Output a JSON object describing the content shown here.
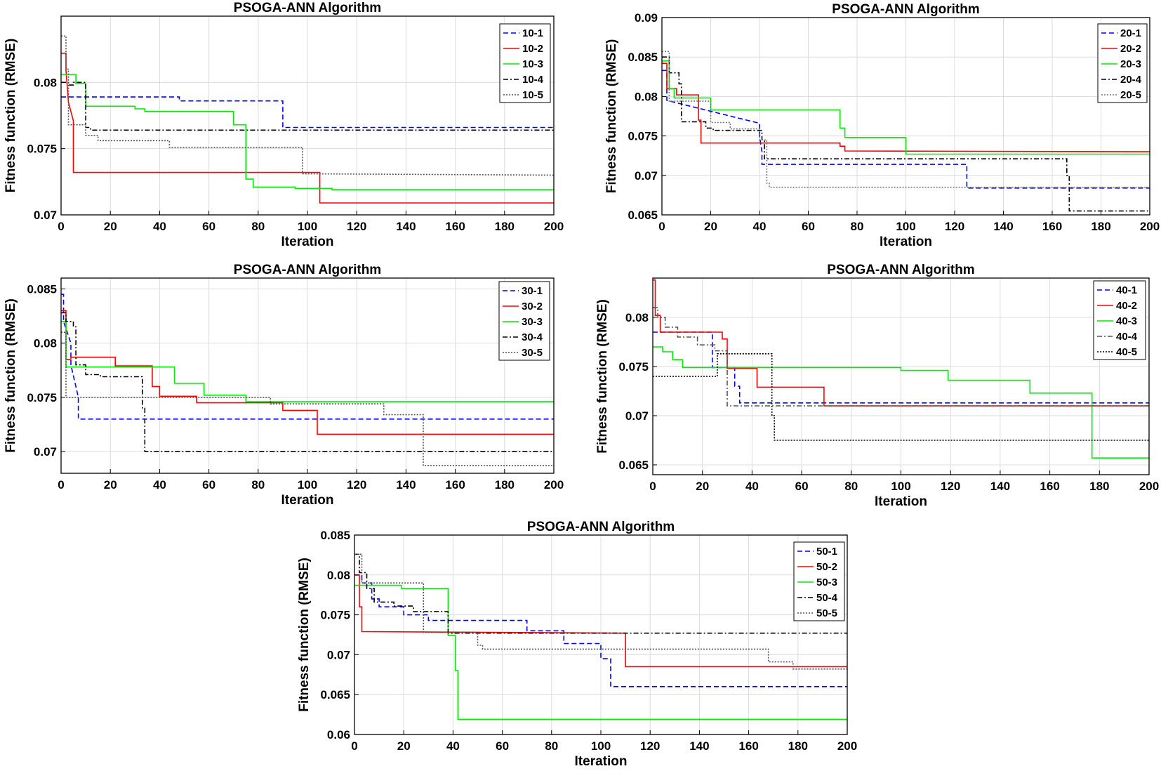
{
  "chart_data": [
    {
      "type": "line",
      "title": "PSOGA-ANN Algorithm",
      "xlabel": "Iteration",
      "ylabel": "Fitness function (RMSE)",
      "xlim": [
        0,
        200
      ],
      "ylim": [
        0.07,
        0.085
      ],
      "xticks": [
        0,
        20,
        40,
        60,
        80,
        100,
        120,
        140,
        160,
        180,
        200
      ],
      "yticks": [
        0.07,
        0.075,
        0.08
      ],
      "ytick_labels": [
        "0.07",
        "0.075",
        "0.08"
      ],
      "grid": true,
      "legend_position": "top-right",
      "series": [
        {
          "name": "10-1",
          "color": "#0000ff",
          "dash": "dashed",
          "x": [
            0,
            48,
            48,
            90,
            90,
            200
          ],
          "y": [
            0.0789,
            0.0789,
            0.0786,
            0.0786,
            0.0766,
            0.0766
          ]
        },
        {
          "name": "10-2",
          "color": "#ff0000",
          "dash": "solid",
          "x": [
            0,
            2,
            2,
            3,
            5,
            5,
            105,
            105,
            200
          ],
          "y": [
            0.0822,
            0.0822,
            0.0809,
            0.0785,
            0.0771,
            0.0732,
            0.0732,
            0.0709,
            0.0709
          ]
        },
        {
          "name": "10-3",
          "color": "#00ee00",
          "dash": "solid",
          "x": [
            0,
            6,
            6,
            10,
            10,
            30,
            30,
            34,
            34,
            70,
            70,
            75,
            75,
            78,
            78,
            95,
            95,
            110,
            110,
            200
          ],
          "y": [
            0.0806,
            0.0806,
            0.0799,
            0.0799,
            0.0782,
            0.0782,
            0.078,
            0.078,
            0.0778,
            0.0778,
            0.0768,
            0.0768,
            0.0727,
            0.0727,
            0.0721,
            0.0721,
            0.072,
            0.072,
            0.0719,
            0.0719
          ]
        },
        {
          "name": "10-4",
          "color": "#000000",
          "dash": "dashdot",
          "x": [
            0,
            3,
            3,
            5,
            5,
            10,
            10,
            12,
            12,
            200
          ],
          "y": [
            0.08,
            0.08,
            0.0798,
            0.0798,
            0.08,
            0.08,
            0.0766,
            0.0766,
            0.0764,
            0.0764
          ]
        },
        {
          "name": "10-5",
          "color": "#555555",
          "dash": "dotted",
          "x": [
            0,
            2,
            2,
            3,
            3,
            10,
            10,
            15,
            15,
            44,
            44,
            98,
            98,
            200
          ],
          "y": [
            0.0835,
            0.0835,
            0.081,
            0.081,
            0.0768,
            0.0768,
            0.076,
            0.076,
            0.0756,
            0.0756,
            0.0751,
            0.0751,
            0.0731,
            0.073
          ]
        }
      ]
    },
    {
      "type": "line",
      "title": "PSOGA-ANN Algorithm",
      "xlabel": "Iteration",
      "ylabel": "Fitness function (RMSE)",
      "xlim": [
        0,
        200
      ],
      "ylim": [
        0.065,
        0.09
      ],
      "xticks": [
        0,
        20,
        40,
        60,
        80,
        100,
        120,
        140,
        160,
        180,
        200
      ],
      "yticks": [
        0.065,
        0.07,
        0.075,
        0.08,
        0.085,
        0.09
      ],
      "ytick_labels": [
        "0.065",
        "0.07",
        "0.075",
        "0.08",
        "0.085",
        "0.09"
      ],
      "grid": true,
      "legend_position": "top-right",
      "series": [
        {
          "name": "20-1",
          "color": "#0000ff",
          "dash": "dashed",
          "x": [
            0,
            2,
            2,
            40,
            40,
            41,
            41,
            125,
            125,
            200
          ],
          "y": [
            0.0833,
            0.0833,
            0.0795,
            0.0766,
            0.075,
            0.073,
            0.0714,
            0.0714,
            0.0684,
            0.0684
          ]
        },
        {
          "name": "20-2",
          "color": "#ff0000",
          "dash": "solid",
          "x": [
            0,
            2,
            2,
            6,
            6,
            15,
            15,
            16,
            16,
            73,
            73,
            75,
            75,
            200
          ],
          "y": [
            0.0842,
            0.0842,
            0.081,
            0.081,
            0.0802,
            0.0802,
            0.077,
            0.077,
            0.0741,
            0.0741,
            0.0737,
            0.0737,
            0.0731,
            0.073
          ]
        },
        {
          "name": "20-3",
          "color": "#00ee00",
          "dash": "solid",
          "x": [
            0,
            3,
            3,
            5,
            5,
            20,
            20,
            73,
            73,
            75,
            75,
            100,
            100,
            200
          ],
          "y": [
            0.0845,
            0.0845,
            0.081,
            0.081,
            0.0798,
            0.0798,
            0.0783,
            0.0783,
            0.076,
            0.076,
            0.0748,
            0.0748,
            0.0727,
            0.0727
          ]
        },
        {
          "name": "20-4",
          "color": "#000000",
          "dash": "dashdot",
          "x": [
            0,
            3,
            3,
            7,
            7,
            8,
            8,
            18,
            18,
            21,
            21,
            41,
            41,
            42,
            42,
            166,
            166,
            167,
            167,
            200
          ],
          "y": [
            0.085,
            0.085,
            0.083,
            0.083,
            0.0816,
            0.0816,
            0.0768,
            0.0768,
            0.076,
            0.076,
            0.0757,
            0.0757,
            0.0745,
            0.0745,
            0.0721,
            0.0721,
            0.07,
            0.07,
            0.0655,
            0.0655
          ]
        },
        {
          "name": "20-5",
          "color": "#777777",
          "dash": "dotted",
          "x": [
            0,
            3,
            3,
            11,
            11,
            20,
            20,
            28,
            28,
            40,
            40,
            43,
            43,
            44,
            44,
            200
          ],
          "y": [
            0.0857,
            0.0857,
            0.0794,
            0.0794,
            0.0794,
            0.0794,
            0.0767,
            0.0767,
            0.0759,
            0.0759,
            0.0745,
            0.0745,
            0.069,
            0.069,
            0.0685,
            0.0685
          ]
        }
      ]
    },
    {
      "type": "line",
      "title": "PSOGA-ANN Algorithm",
      "xlabel": "Iteration",
      "ylabel": "Fitness function (RMSE)",
      "xlim": [
        0,
        200
      ],
      "ylim": [
        0.068,
        0.086
      ],
      "xticks": [
        0,
        20,
        40,
        60,
        80,
        100,
        120,
        140,
        160,
        180,
        200
      ],
      "yticks": [
        0.07,
        0.075,
        0.08,
        0.085
      ],
      "ytick_labels": [
        "0.07",
        "0.075",
        "0.08",
        "0.085"
      ],
      "grid": true,
      "legend_position": "top-right",
      "series": [
        {
          "name": "30-1",
          "color": "#0000ff",
          "dash": "dashed",
          "x": [
            0,
            1,
            1,
            4,
            4,
            7,
            7,
            200
          ],
          "y": [
            0.0845,
            0.0845,
            0.082,
            0.08,
            0.078,
            0.075,
            0.073,
            0.073
          ]
        },
        {
          "name": "30-2",
          "color": "#ff0000",
          "dash": "solid",
          "x": [
            0,
            2,
            2,
            4,
            4,
            22,
            22,
            37,
            37,
            40,
            40,
            55,
            55,
            90,
            90,
            104,
            104,
            200
          ],
          "y": [
            0.083,
            0.083,
            0.0785,
            0.0785,
            0.0787,
            0.0787,
            0.0779,
            0.0779,
            0.076,
            0.076,
            0.0751,
            0.0751,
            0.0745,
            0.0745,
            0.0738,
            0.0738,
            0.0716,
            0.0716
          ]
        },
        {
          "name": "30-3",
          "color": "#00ee00",
          "dash": "solid",
          "x": [
            0,
            2,
            2,
            28,
            28,
            46,
            46,
            58,
            58,
            75,
            75,
            200
          ],
          "y": [
            0.082,
            0.082,
            0.0778,
            0.0778,
            0.0778,
            0.0778,
            0.0763,
            0.0763,
            0.0752,
            0.0752,
            0.0746,
            0.0746
          ]
        },
        {
          "name": "30-4",
          "color": "#000000",
          "dash": "dashdot",
          "x": [
            0,
            2,
            2,
            5,
            5,
            6,
            6,
            10,
            10,
            16,
            16,
            33,
            33,
            34,
            34,
            200
          ],
          "y": [
            0.0828,
            0.0828,
            0.082,
            0.082,
            0.0815,
            0.0815,
            0.078,
            0.078,
            0.0771,
            0.0771,
            0.0769,
            0.0769,
            0.074,
            0.074,
            0.07,
            0.07
          ]
        },
        {
          "name": "30-5",
          "color": "#555555",
          "dash": "dotted",
          "x": [
            0,
            2,
            2,
            85,
            85,
            131,
            131,
            147,
            147,
            200
          ],
          "y": [
            0.081,
            0.081,
            0.075,
            0.075,
            0.0744,
            0.0744,
            0.0734,
            0.0734,
            0.0687,
            0.0687
          ]
        }
      ]
    },
    {
      "type": "line",
      "title": "PSOGA-ANN Algorithm",
      "xlabel": "Iteration",
      "ylabel": "Fitness function (RMSE)",
      "xlim": [
        0,
        200
      ],
      "ylim": [
        0.064,
        0.084
      ],
      "xticks": [
        0,
        20,
        40,
        60,
        80,
        100,
        120,
        140,
        160,
        180,
        200
      ],
      "yticks": [
        0.065,
        0.07,
        0.075,
        0.08
      ],
      "ytick_labels": [
        "0.065",
        "0.07",
        "0.075",
        "0.08"
      ],
      "grid": true,
      "legend_position": "top-right",
      "series": [
        {
          "name": "40-1",
          "color": "#0000ff",
          "dash": "dashed",
          "x": [
            0,
            1,
            1,
            24,
            24,
            33,
            33,
            35,
            35,
            200
          ],
          "y": [
            0.0785,
            0.0785,
            0.0785,
            0.0785,
            0.0749,
            0.0749,
            0.073,
            0.073,
            0.0713,
            0.0713
          ]
        },
        {
          "name": "40-2",
          "color": "#ff0000",
          "dash": "solid",
          "x": [
            0,
            1,
            1,
            3,
            3,
            28,
            28,
            30,
            30,
            42,
            42,
            69,
            69,
            200
          ],
          "y": [
            0.0838,
            0.0838,
            0.0802,
            0.0802,
            0.0785,
            0.0785,
            0.0778,
            0.0778,
            0.0748,
            0.0748,
            0.0729,
            0.0729,
            0.071,
            0.071
          ]
        },
        {
          "name": "40-3",
          "color": "#00ee00",
          "dash": "solid",
          "x": [
            0,
            4,
            4,
            8,
            8,
            12,
            12,
            100,
            100,
            119,
            119,
            152,
            152,
            177,
            177,
            200
          ],
          "y": [
            0.077,
            0.077,
            0.0765,
            0.0765,
            0.0757,
            0.0757,
            0.0749,
            0.0749,
            0.0746,
            0.0746,
            0.0736,
            0.0736,
            0.0723,
            0.0723,
            0.0657,
            0.0657
          ]
        },
        {
          "name": "40-4",
          "color": "#555555",
          "dash": "dashdot",
          "x": [
            0,
            2,
            2,
            5,
            5,
            10,
            10,
            18,
            18,
            25,
            25,
            30,
            30,
            200
          ],
          "y": [
            0.081,
            0.081,
            0.08,
            0.08,
            0.079,
            0.079,
            0.078,
            0.078,
            0.0772,
            0.0772,
            0.0766,
            0.0766,
            0.071,
            0.071
          ]
        },
        {
          "name": "40-5",
          "color": "#000000",
          "dash": "dotted",
          "x": [
            0,
            26,
            26,
            48,
            48,
            49,
            49,
            200
          ],
          "y": [
            0.074,
            0.074,
            0.0763,
            0.0763,
            0.07,
            0.07,
            0.0675,
            0.0675
          ]
        }
      ]
    },
    {
      "type": "line",
      "title": "PSOGA-ANN Algorithm",
      "xlabel": "Iteration",
      "ylabel": "Fitness function (RMSE)",
      "xlim": [
        0,
        200
      ],
      "ylim": [
        0.06,
        0.085
      ],
      "xticks": [
        0,
        20,
        40,
        60,
        80,
        100,
        120,
        140,
        160,
        180,
        200
      ],
      "yticks": [
        0.06,
        0.065,
        0.07,
        0.075,
        0.08,
        0.085
      ],
      "ytick_labels": [
        "0.06",
        "0.065",
        "0.07",
        "0.075",
        "0.08",
        "0.085"
      ],
      "grid": true,
      "legend_position": "top-right",
      "series": [
        {
          "name": "50-1",
          "color": "#0000ff",
          "dash": "dashed",
          "x": [
            0,
            3,
            3,
            7,
            7,
            10,
            10,
            20,
            20,
            30,
            30,
            70,
            70,
            85,
            85,
            100,
            100,
            104,
            104,
            200
          ],
          "y": [
            0.08,
            0.08,
            0.079,
            0.079,
            0.077,
            0.077,
            0.076,
            0.076,
            0.075,
            0.075,
            0.0743,
            0.0743,
            0.073,
            0.073,
            0.0714,
            0.0714,
            0.0695,
            0.0695,
            0.066,
            0.066
          ]
        },
        {
          "name": "50-2",
          "color": "#ff0000",
          "dash": "solid",
          "x": [
            0,
            2,
            2,
            3,
            3,
            110,
            110,
            200
          ],
          "y": [
            0.08,
            0.08,
            0.076,
            0.076,
            0.0729,
            0.0727,
            0.0685,
            0.0685
          ]
        },
        {
          "name": "50-3",
          "color": "#00ee00",
          "dash": "solid",
          "x": [
            0,
            19,
            19,
            38,
            38,
            41,
            41,
            42,
            42,
            200
          ],
          "y": [
            0.0787,
            0.0787,
            0.0783,
            0.0783,
            0.0724,
            0.0724,
            0.068,
            0.068,
            0.0619,
            0.0619
          ]
        },
        {
          "name": "50-4",
          "color": "#000000",
          "dash": "dashdot",
          "x": [
            0,
            2,
            2,
            5,
            5,
            8,
            8,
            16,
            16,
            24,
            24,
            38,
            38,
            200
          ],
          "y": [
            0.0826,
            0.0826,
            0.0803,
            0.0803,
            0.0783,
            0.0783,
            0.0766,
            0.0766,
            0.0761,
            0.0761,
            0.0754,
            0.0754,
            0.0727,
            0.0727
          ]
        },
        {
          "name": "50-5",
          "color": "#555555",
          "dash": "dotted",
          "x": [
            0,
            3,
            3,
            28,
            28,
            50,
            50,
            52,
            52,
            168,
            168,
            178,
            178,
            200
          ],
          "y": [
            0.0826,
            0.0826,
            0.079,
            0.079,
            0.0728,
            0.0728,
            0.0712,
            0.0712,
            0.0707,
            0.0707,
            0.0691,
            0.0691,
            0.0682,
            0.0682
          ]
        }
      ]
    }
  ]
}
